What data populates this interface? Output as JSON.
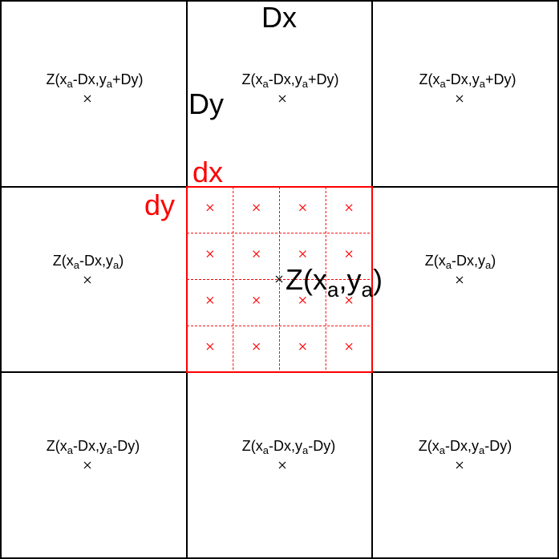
{
  "colors": {
    "coarse_grid": "#000000",
    "fine_grid": "#ff0000"
  },
  "icons": {
    "marker": "x-mark-icon"
  },
  "labels": {
    "coarse_width": "Dx",
    "coarse_height": "Dy",
    "fine_width": "dx",
    "fine_height": "dy"
  },
  "center": {
    "prefix": "Z(x",
    "sub_x": "a",
    "comma": ",y",
    "sub_y": "a",
    "suffix": ")"
  },
  "cells": {
    "top_left": {
      "pre": "Z(x",
      "s1": "a",
      "mid": "-Dx,y",
      "s2": "a",
      "post": "+Dy)"
    },
    "top_center": {
      "pre": "Z(x",
      "s1": "a",
      "mid": "-Dx,y",
      "s2": "a",
      "post": "+Dy)"
    },
    "top_right": {
      "pre": "Z(x",
      "s1": "a",
      "mid": "-Dx,y",
      "s2": "a",
      "post": "+Dy)"
    },
    "middle_left": {
      "pre": "Z(x",
      "s1": "a",
      "mid": "-Dx,y",
      "s2": "a",
      "post": ")"
    },
    "middle_right": {
      "pre": "Z(x",
      "s1": "a",
      "mid": "-Dx,y",
      "s2": "a",
      "post": ")"
    },
    "bottom_left": {
      "pre": "Z(x",
      "s1": "a",
      "mid": "-Dx,y",
      "s2": "a",
      "post": "-Dy)"
    },
    "bottom_center": {
      "pre": "Z(x",
      "s1": "a",
      "mid": "-Dx,y",
      "s2": "a",
      "post": "-Dy)"
    },
    "bottom_right": {
      "pre": "Z(x",
      "s1": "a",
      "mid": "-Dx,y",
      "s2": "a",
      "post": "-Dy)"
    }
  },
  "fine_subdivisions": 4
}
